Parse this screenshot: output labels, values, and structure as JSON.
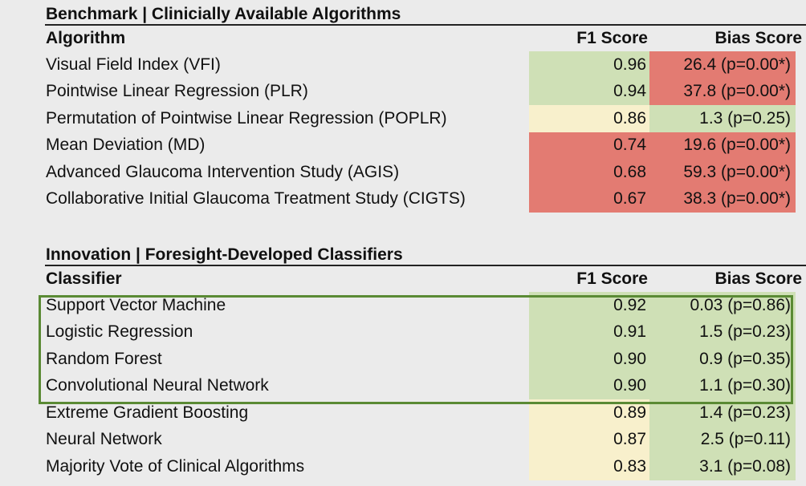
{
  "benchmark": {
    "title": "Benchmark | Clinicially Available Algorithms",
    "header": {
      "name": "Algorithm",
      "f1": "F1 Score",
      "bias": "Bias Score"
    },
    "rows": [
      {
        "name": "Visual Field Index (VFI)",
        "f1": "0.96",
        "bias": "26.4 (p=0.00*)",
        "f1_color": "green",
        "bias_color": "red"
      },
      {
        "name": "Pointwise Linear Regression (PLR)",
        "f1": "0.94",
        "bias": "37.8 (p=0.00*)",
        "f1_color": "green",
        "bias_color": "red"
      },
      {
        "name": "Permutation of Pointwise Linear Regression (POPLR)",
        "f1": "0.86",
        "bias": "1.3 (p=0.25)",
        "f1_color": "yellow",
        "bias_color": "green"
      },
      {
        "name": "Mean Deviation (MD)",
        "f1": "0.74",
        "bias": "19.6 (p=0.00*)",
        "f1_color": "red",
        "bias_color": "red"
      },
      {
        "name": "Advanced Glaucoma Intervention Study (AGIS)",
        "f1": "0.68",
        "bias": "59.3 (p=0.00*)",
        "f1_color": "red",
        "bias_color": "red"
      },
      {
        "name": "Collaborative Initial Glaucoma Treatment Study (CIGTS)",
        "f1": "0.67",
        "bias": "38.3 (p=0.00*)",
        "f1_color": "red",
        "bias_color": "red"
      }
    ]
  },
  "innovation": {
    "title": "Innovation | Foresight-Developed Classifiers",
    "header": {
      "name": "Classifier",
      "f1": "F1 Score",
      "bias": "Bias Score"
    },
    "rows": [
      {
        "name": "Support Vector Machine",
        "f1": "0.92",
        "bias": "0.03 (p=0.86)",
        "f1_color": "green",
        "bias_color": "green"
      },
      {
        "name": "Logistic Regression",
        "f1": "0.91",
        "bias": "1.5 (p=0.23)",
        "f1_color": "green",
        "bias_color": "green"
      },
      {
        "name": "Random Forest",
        "f1": "0.90",
        "bias": "0.9 (p=0.35)",
        "f1_color": "green",
        "bias_color": "green"
      },
      {
        "name": "Convolutional Neural Network",
        "f1": "0.90",
        "bias": "1.1 (p=0.30)",
        "f1_color": "green",
        "bias_color": "green"
      },
      {
        "name": "Extreme Gradient Boosting",
        "f1": "0.89",
        "bias": "1.4 (p=0.23)",
        "f1_color": "yellow",
        "bias_color": "green"
      },
      {
        "name": "Neural Network",
        "f1": "0.87",
        "bias": "2.5 (p=0.11)",
        "f1_color": "yellow",
        "bias_color": "green"
      },
      {
        "name": "Majority Vote of Clinical Algorithms",
        "f1": "0.83",
        "bias": "3.1 (p=0.08)",
        "f1_color": "yellow",
        "bias_color": "green"
      }
    ]
  },
  "colors": {
    "green": "#cfe0b6",
    "yellow": "#f8f0cc",
    "red": "#e37b72",
    "highlight_border": "#5a8a34"
  }
}
